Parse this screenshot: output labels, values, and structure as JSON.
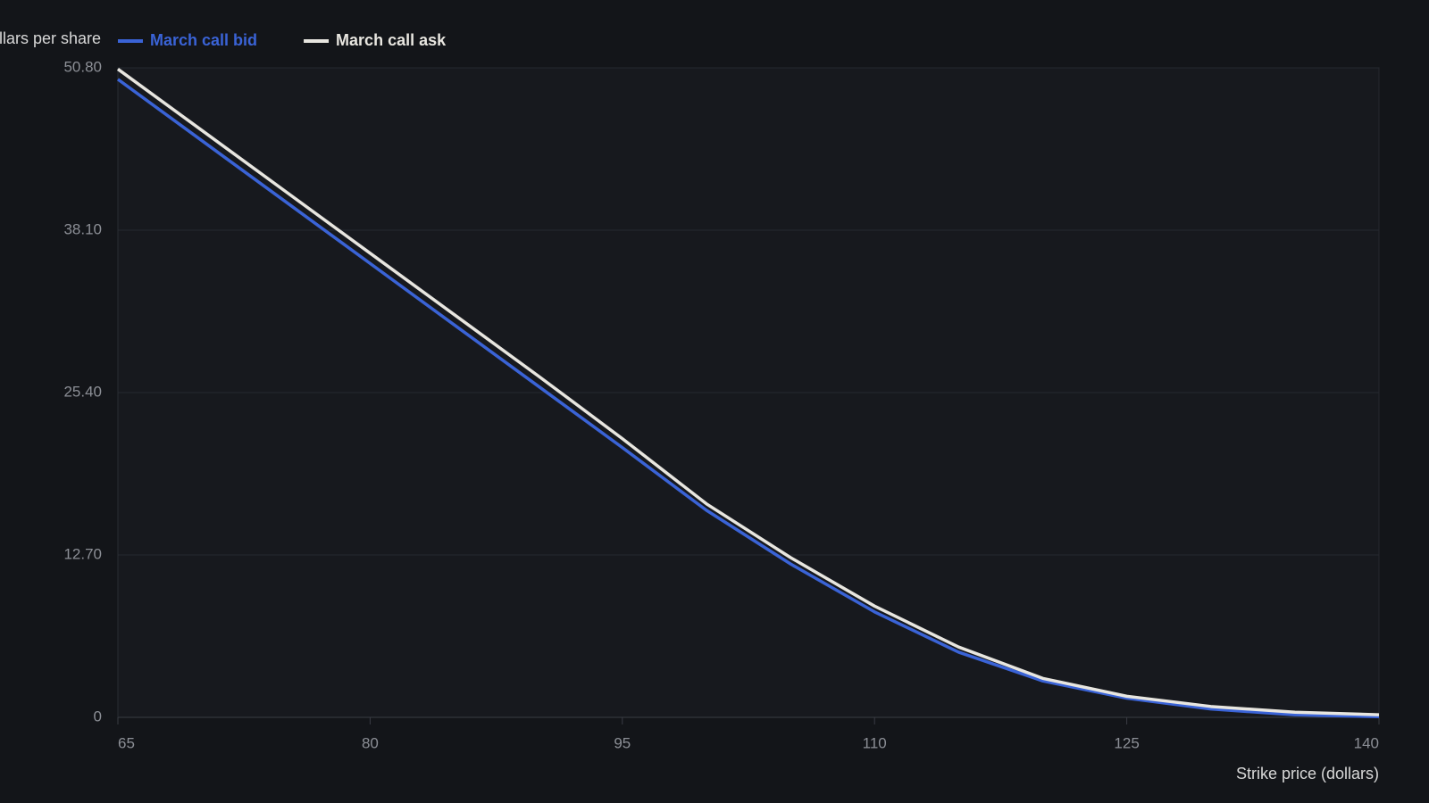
{
  "chart_data": {
    "type": "line",
    "y_label": "Dollars per share",
    "x_label": "Strike price (dollars)",
    "x": [
      65,
      70,
      75,
      80,
      85,
      90,
      95,
      100,
      105,
      110,
      115,
      120,
      125,
      130,
      135,
      140
    ],
    "series": [
      {
        "name": "March call bid",
        "color": "#3a63d6",
        "values": [
          49.9,
          45.1,
          40.3,
          35.5,
          30.7,
          25.9,
          21.1,
          16.2,
          12.0,
          8.25,
          5.1,
          2.85,
          1.5,
          0.65,
          0.2,
          0.05
        ]
      },
      {
        "name": "March call ask",
        "color": "#e8e6e0",
        "values": [
          50.7,
          45.9,
          41.1,
          36.3,
          31.5,
          26.7,
          21.8,
          16.7,
          12.5,
          8.7,
          5.5,
          3.05,
          1.65,
          0.85,
          0.4,
          0.2
        ]
      }
    ],
    "xlim": [
      65,
      140
    ],
    "xticks": [
      65,
      80,
      95,
      110,
      125,
      140
    ],
    "ylim": [
      0,
      50.8
    ],
    "yticks": [
      0,
      {
        "value": 12.7,
        "label": "12.70"
      },
      {
        "value": 25.4,
        "label": "25.40"
      },
      {
        "value": 38.1,
        "label": "38.10"
      },
      {
        "value": 50.8,
        "label": "50.80"
      }
    ],
    "grid": true
  }
}
